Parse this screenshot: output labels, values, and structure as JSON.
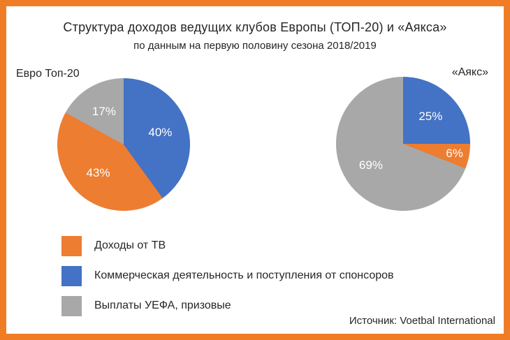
{
  "title": "Структура доходов ведущих клубов Европы (ТОП-20) и «Аякса»",
  "subtitle": "по данным на первую половину сезона 2018/2019",
  "source": "Источник: Voetbal International",
  "frame_color": "#F07D26",
  "colors": {
    "tv": "#ED7D31",
    "commercial": "#4472C4",
    "uefa": "#A8A8A8"
  },
  "chart_data": [
    {
      "type": "pie",
      "name": "Евро Топ-20",
      "slices": [
        {
          "label": "Коммерческая деятельность и поступления от спонсоров",
          "value": 40,
          "display": "40%",
          "color": "#4472C4"
        },
        {
          "label": "Доходы от ТВ",
          "value": 43,
          "display": "43%",
          "color": "#ED7D31"
        },
        {
          "label": "Выплаты УЕФА, призовые",
          "value": 17,
          "display": "17%",
          "color": "#A8A8A8"
        }
      ]
    },
    {
      "type": "pie",
      "name": "«Аякс»",
      "slices": [
        {
          "label": "Коммерческая деятельность и поступления от спонсоров",
          "value": 25,
          "display": "25%",
          "color": "#4472C4"
        },
        {
          "label": "Доходы от ТВ",
          "value": 6,
          "display": "6%",
          "color": "#ED7D31"
        },
        {
          "label": "Выплаты УЕФА, призовые",
          "value": 69,
          "display": "69%",
          "color": "#A8A8A8"
        }
      ]
    }
  ],
  "legend": [
    {
      "label": "Доходы от ТВ",
      "color": "#ED7D31"
    },
    {
      "label": "Коммерческая деятельность и поступления от спонсоров",
      "color": "#4472C4"
    },
    {
      "label": "Выплаты УЕФА, призовые",
      "color": "#A8A8A8"
    }
  ]
}
